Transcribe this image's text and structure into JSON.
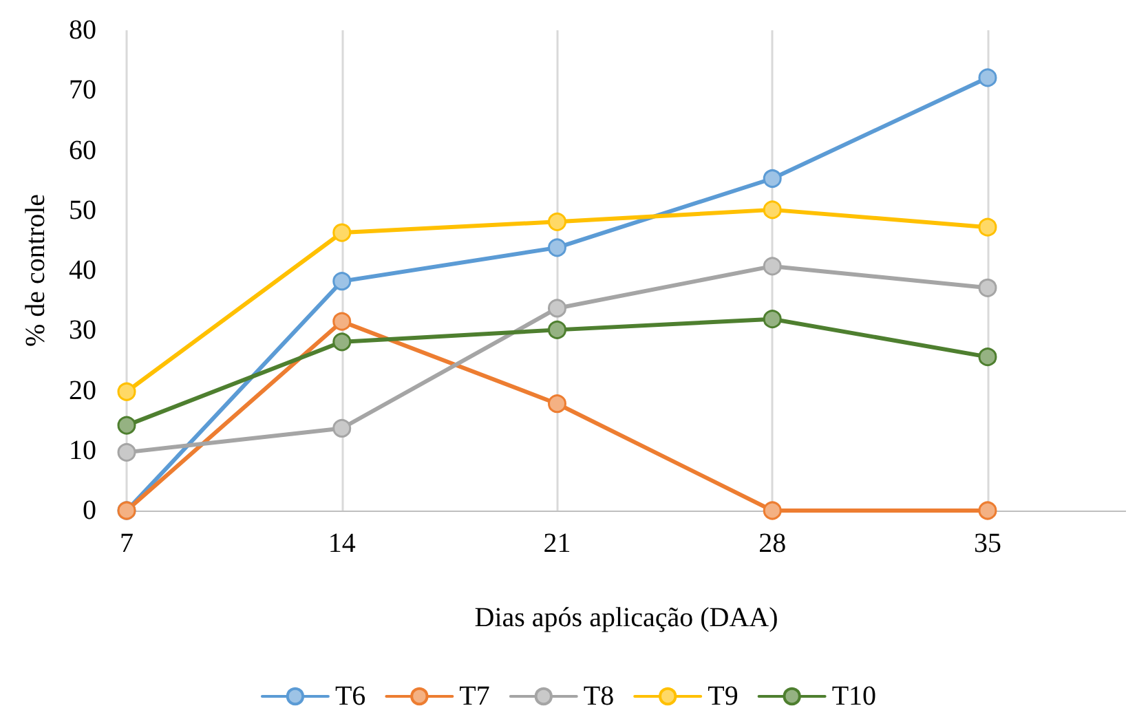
{
  "chart_data": {
    "type": "line",
    "xlabel": "Dias após aplicação (DAA)",
    "ylabel": "% de controle",
    "x": [
      7,
      14,
      21,
      28,
      35
    ],
    "xlim": [
      7,
      39.5
    ],
    "xticks": [
      7,
      14,
      21,
      28,
      35
    ],
    "ylim": [
      0,
      80
    ],
    "yticks": [
      0,
      10,
      20,
      30,
      40,
      50,
      60,
      70,
      80
    ],
    "grid": "x",
    "legend": "bottom",
    "marker": "circle",
    "line_style": "solid",
    "series": [
      {
        "name": "T6",
        "color": "#5b9bd5",
        "values": [
          0,
          38.2,
          43.8,
          55.3,
          72.1
        ]
      },
      {
        "name": "T7",
        "color": "#ed7d31",
        "values": [
          0,
          31.5,
          17.8,
          0,
          0
        ]
      },
      {
        "name": "T8",
        "color": "#a5a5a5",
        "values": [
          9.7,
          13.7,
          33.7,
          40.7,
          37.1
        ]
      },
      {
        "name": "T9",
        "color": "#ffc000",
        "values": [
          19.8,
          46.3,
          48.1,
          50.1,
          47.2
        ]
      },
      {
        "name": "T10",
        "color": "#4e7f2f",
        "values": [
          14.2,
          28.1,
          30.1,
          31.9,
          25.6
        ]
      }
    ]
  }
}
